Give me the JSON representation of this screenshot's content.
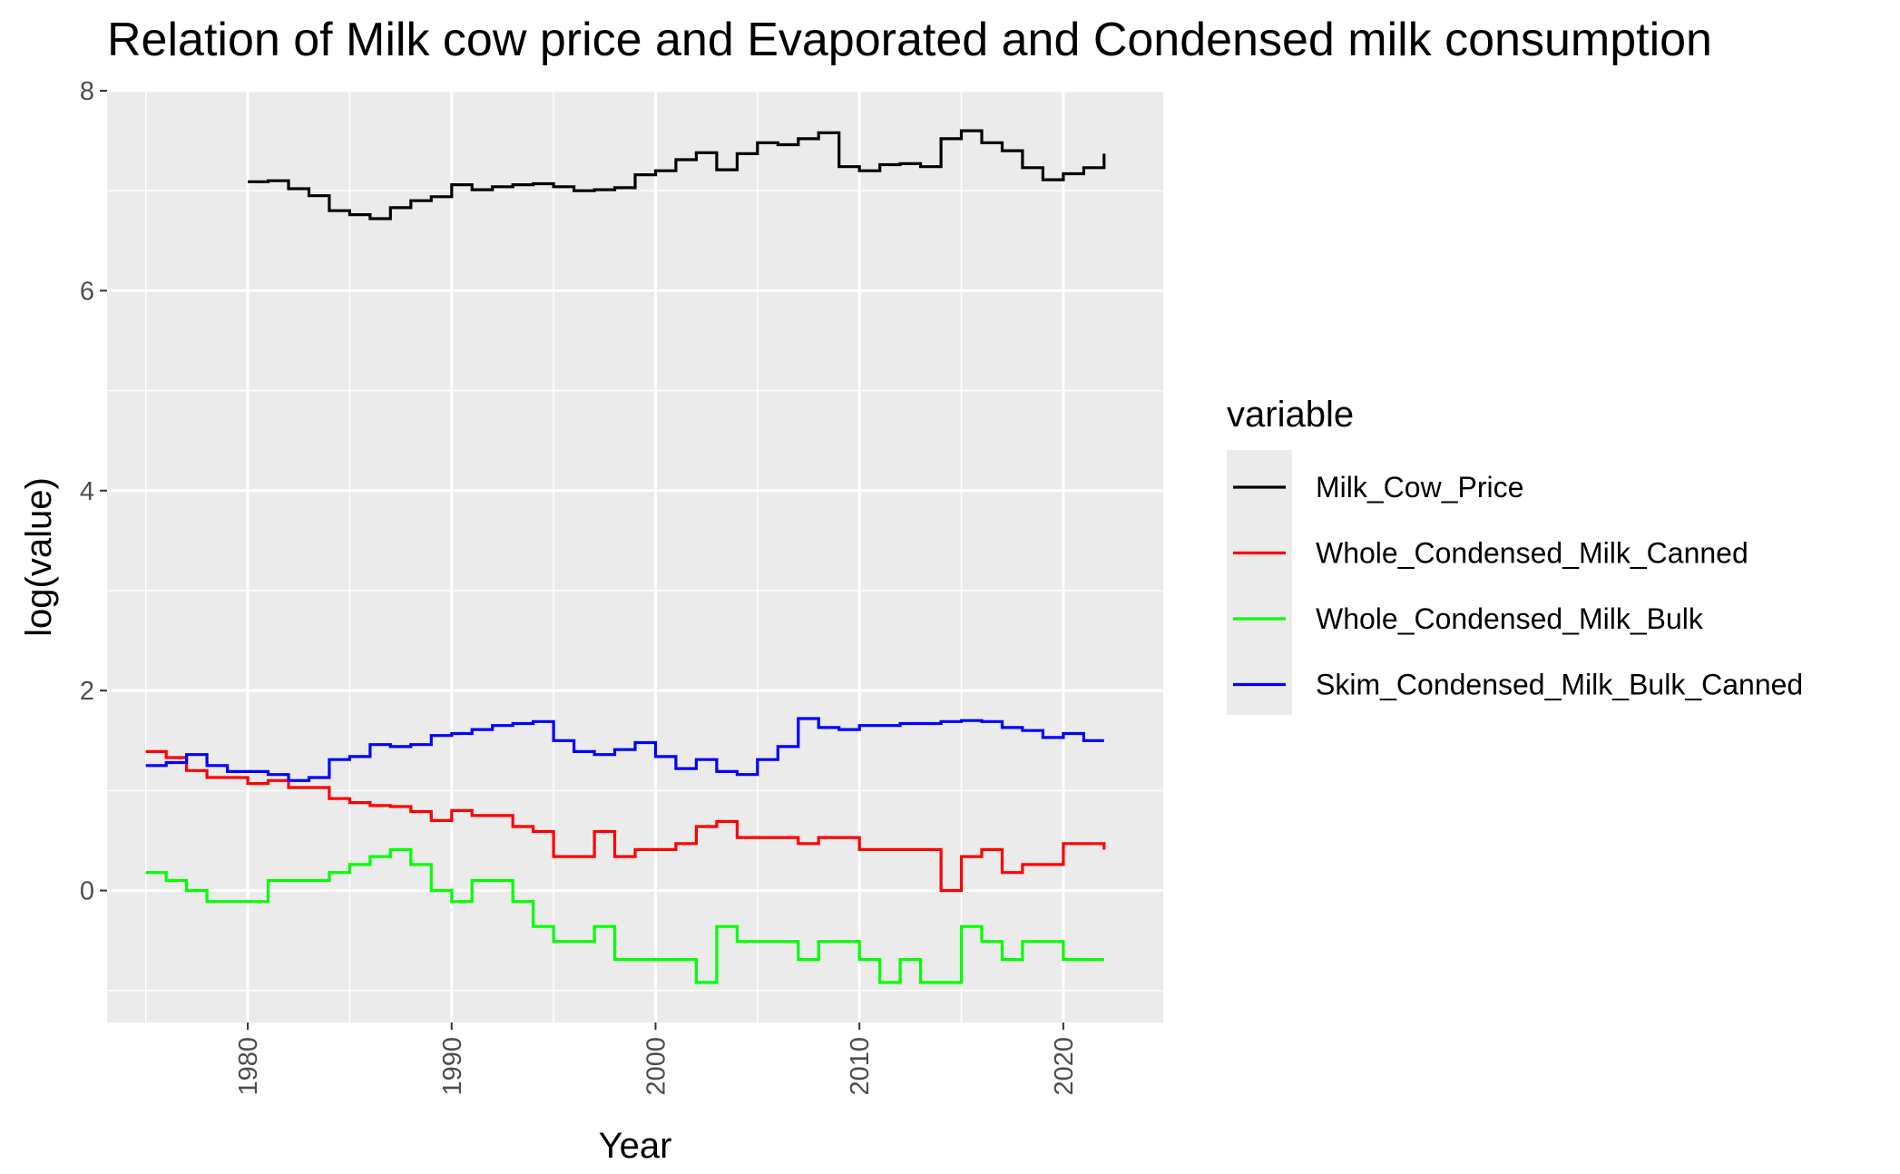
{
  "chart_data": {
    "type": "line",
    "step": true,
    "title": "Relation of Milk cow price and Evaporated and Condensed milk consumption",
    "xlabel": "Year",
    "ylabel": "log(value)",
    "xlim": [
      1973.1,
      2024.9
    ],
    "ylim": [
      -1.32,
      8.0
    ],
    "x_ticks": [
      1980,
      1990,
      2000,
      2010,
      2020
    ],
    "x_tick_labels": [
      "1980",
      "1990",
      "2000",
      "2010",
      "2020"
    ],
    "y_ticks": [
      0,
      2,
      4,
      6,
      8
    ],
    "y_tick_labels": [
      "0",
      "2",
      "4",
      "6",
      "8"
    ],
    "grid": true,
    "legend": {
      "title": "variable",
      "position": "right"
    },
    "series": [
      {
        "name": "Milk_Cow_Price",
        "color": "#000000",
        "x": [
          1980,
          1981,
          1982,
          1983,
          1984,
          1985,
          1986,
          1987,
          1988,
          1989,
          1990,
          1991,
          1992,
          1993,
          1994,
          1995,
          1996,
          1997,
          1998,
          1999,
          2000,
          2001,
          2002,
          2003,
          2004,
          2005,
          2006,
          2007,
          2008,
          2009,
          2010,
          2011,
          2012,
          2013,
          2014,
          2015,
          2016,
          2017,
          2018,
          2019,
          2020,
          2021,
          2022
        ],
        "values": [
          7.09,
          7.1,
          7.02,
          6.95,
          6.8,
          6.76,
          6.72,
          6.83,
          6.9,
          6.94,
          7.06,
          7.01,
          7.04,
          7.06,
          7.07,
          7.04,
          7.0,
          7.01,
          7.03,
          7.16,
          7.2,
          7.31,
          7.38,
          7.21,
          7.37,
          7.48,
          7.46,
          7.52,
          7.58,
          7.24,
          7.2,
          7.26,
          7.27,
          7.24,
          7.52,
          7.6,
          7.48,
          7.4,
          7.23,
          7.11,
          7.17,
          7.23,
          7.37
        ]
      },
      {
        "name": "Whole_Condensed_Milk_Canned",
        "color": "#ff0000",
        "x": [
          1975,
          1976,
          1977,
          1978,
          1979,
          1980,
          1981,
          1982,
          1983,
          1984,
          1985,
          1986,
          1987,
          1988,
          1989,
          1990,
          1991,
          1992,
          1993,
          1994,
          1995,
          1996,
          1997,
          1998,
          1999,
          2000,
          2001,
          2002,
          2003,
          2004,
          2005,
          2006,
          2007,
          2008,
          2009,
          2010,
          2011,
          2012,
          2013,
          2014,
          2015,
          2016,
          2017,
          2018,
          2019,
          2020,
          2021,
          2022
        ],
        "values": [
          1.39,
          1.33,
          1.2,
          1.13,
          1.13,
          1.07,
          1.1,
          1.03,
          1.03,
          0.92,
          0.88,
          0.85,
          0.84,
          0.79,
          0.7,
          0.8,
          0.75,
          0.75,
          0.64,
          0.59,
          0.34,
          0.34,
          0.59,
          0.34,
          0.41,
          0.41,
          0.47,
          0.64,
          0.69,
          0.53,
          0.53,
          0.53,
          0.47,
          0.53,
          0.53,
          0.41,
          0.41,
          0.41,
          0.41,
          0.0,
          0.34,
          0.41,
          0.18,
          0.26,
          0.26,
          0.47,
          0.47,
          0.41
        ]
      },
      {
        "name": "Whole_Condensed_Milk_Bulk",
        "color": "#00ff00",
        "x": [
          1975,
          1976,
          1977,
          1978,
          1979,
          1980,
          1981,
          1982,
          1983,
          1984,
          1985,
          1986,
          1987,
          1988,
          1989,
          1990,
          1991,
          1992,
          1993,
          1994,
          1995,
          1996,
          1997,
          1998,
          1999,
          2000,
          2001,
          2002,
          2003,
          2004,
          2005,
          2006,
          2007,
          2008,
          2009,
          2010,
          2011,
          2012,
          2013,
          2014,
          2015,
          2016,
          2017,
          2018,
          2019,
          2020,
          2021,
          2022
        ],
        "values": [
          0.18,
          0.1,
          0.0,
          -0.11,
          -0.11,
          -0.11,
          0.1,
          0.1,
          0.1,
          0.18,
          0.26,
          0.34,
          0.41,
          0.26,
          0.0,
          -0.11,
          0.1,
          0.1,
          -0.11,
          -0.36,
          -0.51,
          -0.51,
          -0.36,
          -0.69,
          -0.69,
          -0.69,
          -0.69,
          -0.92,
          -0.36,
          -0.51,
          -0.51,
          -0.51,
          -0.69,
          -0.51,
          -0.51,
          -0.69,
          -0.92,
          -0.69,
          -0.92,
          -0.92,
          -0.36,
          -0.51,
          -0.69,
          -0.51,
          -0.51,
          -0.69,
          -0.69,
          -0.69
        ]
      },
      {
        "name": "Skim_Condensed_Milk_Bulk_Canned",
        "color": "#0000ff",
        "x": [
          1975,
          1976,
          1977,
          1978,
          1979,
          1980,
          1981,
          1982,
          1983,
          1984,
          1985,
          1986,
          1987,
          1988,
          1989,
          1990,
          1991,
          1992,
          1993,
          1994,
          1995,
          1996,
          1997,
          1998,
          1999,
          2000,
          2001,
          2002,
          2003,
          2004,
          2005,
          2006,
          2007,
          2008,
          2009,
          2010,
          2011,
          2012,
          2013,
          2014,
          2015,
          2016,
          2017,
          2018,
          2019,
          2020,
          2021,
          2022
        ],
        "values": [
          1.25,
          1.28,
          1.36,
          1.25,
          1.19,
          1.19,
          1.16,
          1.1,
          1.13,
          1.31,
          1.34,
          1.46,
          1.44,
          1.46,
          1.55,
          1.57,
          1.61,
          1.65,
          1.67,
          1.69,
          1.5,
          1.39,
          1.36,
          1.41,
          1.48,
          1.34,
          1.22,
          1.31,
          1.19,
          1.16,
          1.31,
          1.44,
          1.72,
          1.63,
          1.61,
          1.65,
          1.65,
          1.67,
          1.67,
          1.69,
          1.7,
          1.69,
          1.63,
          1.6,
          1.53,
          1.57,
          1.5,
          1.5
        ]
      }
    ]
  }
}
